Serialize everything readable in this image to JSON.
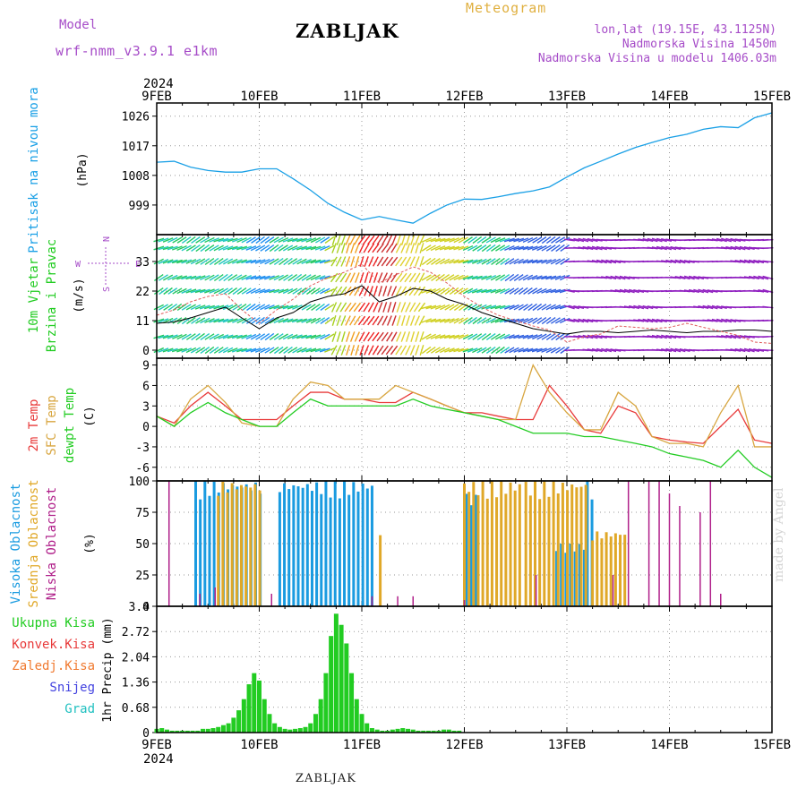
{
  "header": {
    "model_label": "Model",
    "model_name": "wrf-nmm_v3.9.1 e1km",
    "station": "ZABLJAK",
    "product": "Meteogram",
    "lonlat": "lon,lat (19.15E, 43.1125N)",
    "elevation": "Nadmorska Visina 1450m",
    "model_elevation": "Nadmorska Visina u modelu 1406.03m"
  },
  "footer": {
    "station": "ZABLJAK",
    "credit": "made by Angel"
  },
  "colors": {
    "pressure": "#1aa0e6",
    "temp2m": "#e83a3a",
    "sfctemp": "#d8a640",
    "dewpt": "#22cc22",
    "cloud_high": "#1a9be0",
    "cloud_mid": "#e0a828",
    "cloud_low": "#b0208a",
    "precip": "#22cc22",
    "label_purple": "#a64cc8"
  },
  "time_axis": {
    "year": "2024",
    "ticks": [
      "9FEB",
      "10FEB",
      "11FEB",
      "12FEB",
      "13FEB",
      "14FEB",
      "15FEB"
    ]
  },
  "chart_data": [
    {
      "id": "pressure",
      "type": "line",
      "ylabel_left": "Pritisak na nivou mora",
      "ylabel_unit": "(hPa)",
      "yticks": [
        999,
        1008,
        1017,
        1026
      ],
      "ylim": [
        990,
        1030
      ],
      "grid": true,
      "series": [
        {
          "x": [
            0,
            0.17,
            0.33,
            0.5,
            0.67,
            0.83,
            1.0,
            1.17,
            1.33,
            1.5,
            1.67,
            1.83,
            2.0,
            2.17,
            2.33,
            2.5,
            2.67,
            2.83,
            3.0,
            3.17,
            3.33,
            3.5,
            3.67,
            3.83,
            4.0,
            4.17,
            4.33,
            4.5,
            4.67,
            4.83,
            5.0,
            5.17,
            5.33,
            5.5,
            5.67,
            5.83,
            6.0
          ],
          "y": [
            1012,
            1012.3,
            1010.5,
            1009.5,
            1009,
            1009,
            1010,
            1010,
            1007,
            1003.5,
            999.5,
            996.8,
            994.5,
            995.5,
            994.5,
            993.5,
            996.5,
            999,
            1000.8,
            1000.7,
            1001.5,
            1002.5,
            1003.3,
            1004.5,
            1007.5,
            1010.3,
            1012.3,
            1014.5,
            1016.5,
            1018,
            1019.5,
            1020.5,
            1022,
            1022.8,
            1022.5,
            1025.5,
            1027
          ]
        }
      ]
    },
    {
      "id": "wind",
      "type": "line",
      "ylabel_left": [
        "10m Vjetar",
        "Brzina i Pravac"
      ],
      "ylabel_unit": "(m/s)",
      "compass": {
        "n": "N",
        "s": "S",
        "e": "E",
        "w": "W"
      },
      "yticks": [
        0,
        11,
        22,
        33
      ],
      "ylim": [
        -3,
        43
      ],
      "grid": true,
      "series": [
        {
          "name": "speed",
          "x": [
            0,
            0.17,
            0.33,
            0.5,
            0.67,
            0.83,
            1.0,
            1.17,
            1.33,
            1.5,
            1.67,
            1.83,
            2.0,
            2.17,
            2.33,
            2.5,
            2.67,
            2.83,
            3.0,
            3.17,
            3.33,
            3.5,
            3.67,
            3.83,
            4.0,
            4.17,
            4.33,
            4.5,
            4.67,
            4.83,
            5.0,
            5.17,
            5.33,
            5.5,
            5.67,
            5.83,
            6.0
          ],
          "y": [
            10,
            10.5,
            12,
            14,
            16,
            12,
            8,
            12,
            14,
            18,
            20,
            21,
            24,
            18,
            20,
            23,
            22,
            19,
            17,
            14,
            12,
            10,
            8,
            7,
            6,
            7,
            7,
            6.5,
            7,
            7.5,
            7,
            6.5,
            7,
            7,
            7.5,
            7.5,
            7
          ]
        },
        {
          "name": "gust",
          "x": [
            0,
            0.17,
            0.33,
            0.5,
            0.67,
            0.83,
            1.0,
            1.17,
            1.33,
            1.5,
            1.67,
            1.83,
            2.0,
            2.17,
            2.33,
            2.5,
            2.67,
            2.83,
            3.0,
            3.17,
            3.33,
            3.5,
            3.67,
            3.83,
            4.0,
            4.17,
            4.33,
            4.5,
            4.67,
            4.83,
            5.0,
            5.17,
            5.33,
            5.5,
            5.67,
            5.83,
            6.0
          ],
          "y": [
            13,
            15,
            18,
            20,
            21,
            15,
            10,
            15,
            19,
            24,
            27,
            29,
            32,
            25,
            28,
            31,
            29,
            25,
            20,
            16,
            13,
            11,
            9,
            7.5,
            3,
            5,
            6,
            9,
            8.5,
            8,
            8.5,
            10,
            8.5,
            7,
            5.5,
            3,
            2.5
          ]
        }
      ]
    },
    {
      "id": "temperature",
      "type": "line",
      "ylabel_left": [
        "2m Temp",
        "SFC Temp",
        "dewpt Temp"
      ],
      "ylabel_unit": "(C)",
      "yticks": [
        -6,
        -3,
        0,
        3,
        6,
        9
      ],
      "ylim": [
        -8,
        10
      ],
      "grid": true,
      "x": [
        0,
        0.17,
        0.33,
        0.5,
        0.67,
        0.83,
        1.0,
        1.17,
        1.33,
        1.5,
        1.67,
        1.83,
        2.0,
        2.17,
        2.33,
        2.5,
        2.67,
        2.83,
        3.0,
        3.17,
        3.33,
        3.5,
        3.67,
        3.83,
        4.0,
        4.17,
        4.33,
        4.5,
        4.67,
        4.83,
        5.0,
        5.17,
        5.33,
        5.5,
        5.67,
        5.83,
        6.0
      ],
      "series": [
        {
          "name": "2m Temp",
          "y": [
            1.5,
            0.5,
            3,
            5,
            3,
            1,
            1,
            1,
            3,
            5,
            5,
            4,
            4,
            3.5,
            3.5,
            5,
            4,
            3,
            2,
            2,
            1.5,
            1,
            1,
            6,
            3,
            -0.5,
            -1,
            3,
            2,
            -1.5,
            -2,
            -2.3,
            -2.5,
            0,
            2.5,
            -2,
            -2.5
          ]
        },
        {
          "name": "SFC Temp",
          "y": [
            1.5,
            0,
            4,
            6,
            3.5,
            0.5,
            0,
            0,
            4,
            6.5,
            6,
            4,
            4,
            4,
            6,
            5,
            4,
            3,
            2,
            1.5,
            1,
            1,
            9,
            5,
            2,
            -0.5,
            -0.5,
            5,
            3,
            -1.5,
            -2.5,
            -2.5,
            -3,
            2,
            6,
            -3,
            -3
          ]
        },
        {
          "name": "dewpt Temp",
          "y": [
            1.5,
            0,
            2,
            3.5,
            2,
            1,
            0,
            0,
            2,
            4,
            3,
            3,
            3,
            3,
            3,
            4,
            3,
            2.5,
            2,
            1.5,
            1,
            0,
            -1,
            -1,
            -1,
            -1.5,
            -1.5,
            -2,
            -2.5,
            -3,
            -4,
            -4.5,
            -5,
            -6,
            -3.5,
            -6,
            -7.5
          ]
        }
      ]
    },
    {
      "id": "clouds",
      "type": "bar",
      "ylabel_left": [
        "Visoka Oblacnost",
        "Srednja Oblacnost",
        "Niska Oblacnost"
      ],
      "ylabel_unit": "(%)",
      "yticks": [
        0,
        25,
        50,
        75,
        100
      ],
      "ylim": [
        0,
        100
      ],
      "grid": true,
      "series": [
        {
          "name": "Visoka Oblacnost",
          "segments": [
            [
              0.38,
              1.02,
              100
            ],
            [
              1.2,
              2.12,
              100
            ],
            [
              3.02,
              3.12,
              90
            ],
            [
              3.9,
              4.2,
              50
            ],
            [
              4.2,
              4.25,
              100
            ]
          ]
        },
        {
          "name": "Srednja Oblacnost",
          "segments": [
            [
              0.6,
              1.05,
              100
            ],
            [
              2.18,
              2.22,
              58
            ],
            [
              3.0,
              3.55,
              100
            ],
            [
              3.6,
              4.2,
              100
            ],
            [
              4.25,
              4.6,
              60
            ]
          ]
        },
        {
          "name": "Niska Oblacnost",
          "spikes": [
            [
              0.12,
              100
            ],
            [
              0.42,
              10
            ],
            [
              0.57,
              15
            ],
            [
              1.12,
              10
            ],
            [
              2.1,
              8
            ],
            [
              2.35,
              8
            ],
            [
              2.5,
              8
            ],
            [
              3.0,
              5
            ],
            [
              3.7,
              25
            ],
            [
              4.45,
              25
            ],
            [
              4.6,
              100
            ],
            [
              4.8,
              100
            ],
            [
              4.9,
              100
            ],
            [
              5.0,
              90
            ],
            [
              5.1,
              80
            ],
            [
              5.3,
              75
            ],
            [
              5.4,
              100
            ],
            [
              5.5,
              10
            ]
          ]
        }
      ]
    },
    {
      "id": "precip",
      "type": "bar",
      "ylabel_left": [
        "Ukupna Kisa",
        "Konvek.Kisa",
        "Zaledj.Kisa",
        "Snijeg",
        "Grad"
      ],
      "ylabel_unit": "1hr Precip (mm)",
      "yticks": [
        0,
        0.68,
        1.36,
        2.04,
        2.72,
        3.4
      ],
      "ylim": [
        0,
        3.4
      ],
      "grid": true,
      "values": [
        0.1,
        0.12,
        0.08,
        0.05,
        0.05,
        0.05,
        0.05,
        0.05,
        0.05,
        0.1,
        0.1,
        0.12,
        0.15,
        0.2,
        0.25,
        0.4,
        0.6,
        0.9,
        1.3,
        1.6,
        1.4,
        0.9,
        0.5,
        0.25,
        0.15,
        0.1,
        0.08,
        0.1,
        0.12,
        0.15,
        0.25,
        0.5,
        0.9,
        1.6,
        2.6,
        3.2,
        2.9,
        2.4,
        1.6,
        0.9,
        0.5,
        0.25,
        0.12,
        0.08,
        0.05,
        0.05,
        0.08,
        0.1,
        0.12,
        0.1,
        0.08,
        0.05,
        0.05,
        0.05,
        0.05,
        0.05,
        0.08,
        0.08,
        0.05,
        0.05
      ],
      "values_start_day": 0,
      "values_step_day": 0.05
    }
  ]
}
